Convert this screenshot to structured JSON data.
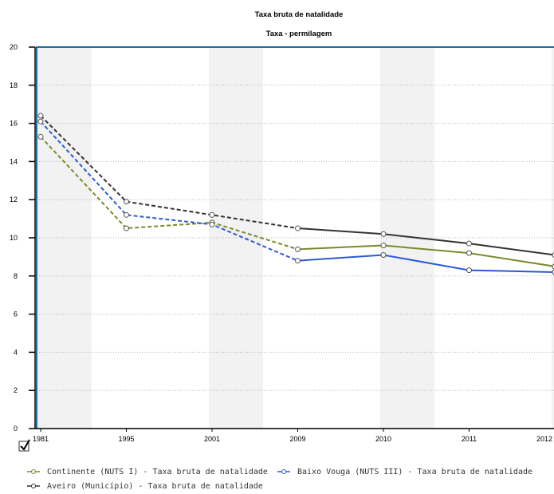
{
  "chart_data": {
    "type": "line",
    "title": "Taxa bruta de natalidade",
    "subtitle": "Taxa - permilagem",
    "xlabel": "",
    "ylabel": "",
    "categories": [
      "1981",
      "1995",
      "2001",
      "2009",
      "2010",
      "2011",
      "2012"
    ],
    "ylim": [
      0,
      20
    ],
    "yticks": [
      0,
      2,
      4,
      6,
      8,
      10,
      12,
      14,
      16,
      18,
      20
    ],
    "grid": true,
    "dashed_until_category": "2009",
    "legend_position": "bottom",
    "series": [
      {
        "name": "Continente (NUTS I) - Taxa bruta de natalidade",
        "color": "#7a8a2a",
        "values": [
          15.3,
          10.5,
          10.8,
          9.4,
          9.6,
          9.2,
          8.5
        ]
      },
      {
        "name": "Baixo Vouga (NUTS III) - Taxa bruta de natalidade",
        "color": "#2b5bd6",
        "values": [
          16.1,
          11.2,
          10.7,
          8.8,
          9.1,
          8.3,
          8.2
        ]
      },
      {
        "name": "Aveiro (Município) - Taxa bruta de natalidade",
        "color": "#333333",
        "values": [
          16.4,
          11.9,
          11.2,
          10.5,
          10.2,
          9.7,
          9.1
        ]
      }
    ]
  },
  "ui": {
    "checkbox_icon": "checkmark-icon"
  }
}
